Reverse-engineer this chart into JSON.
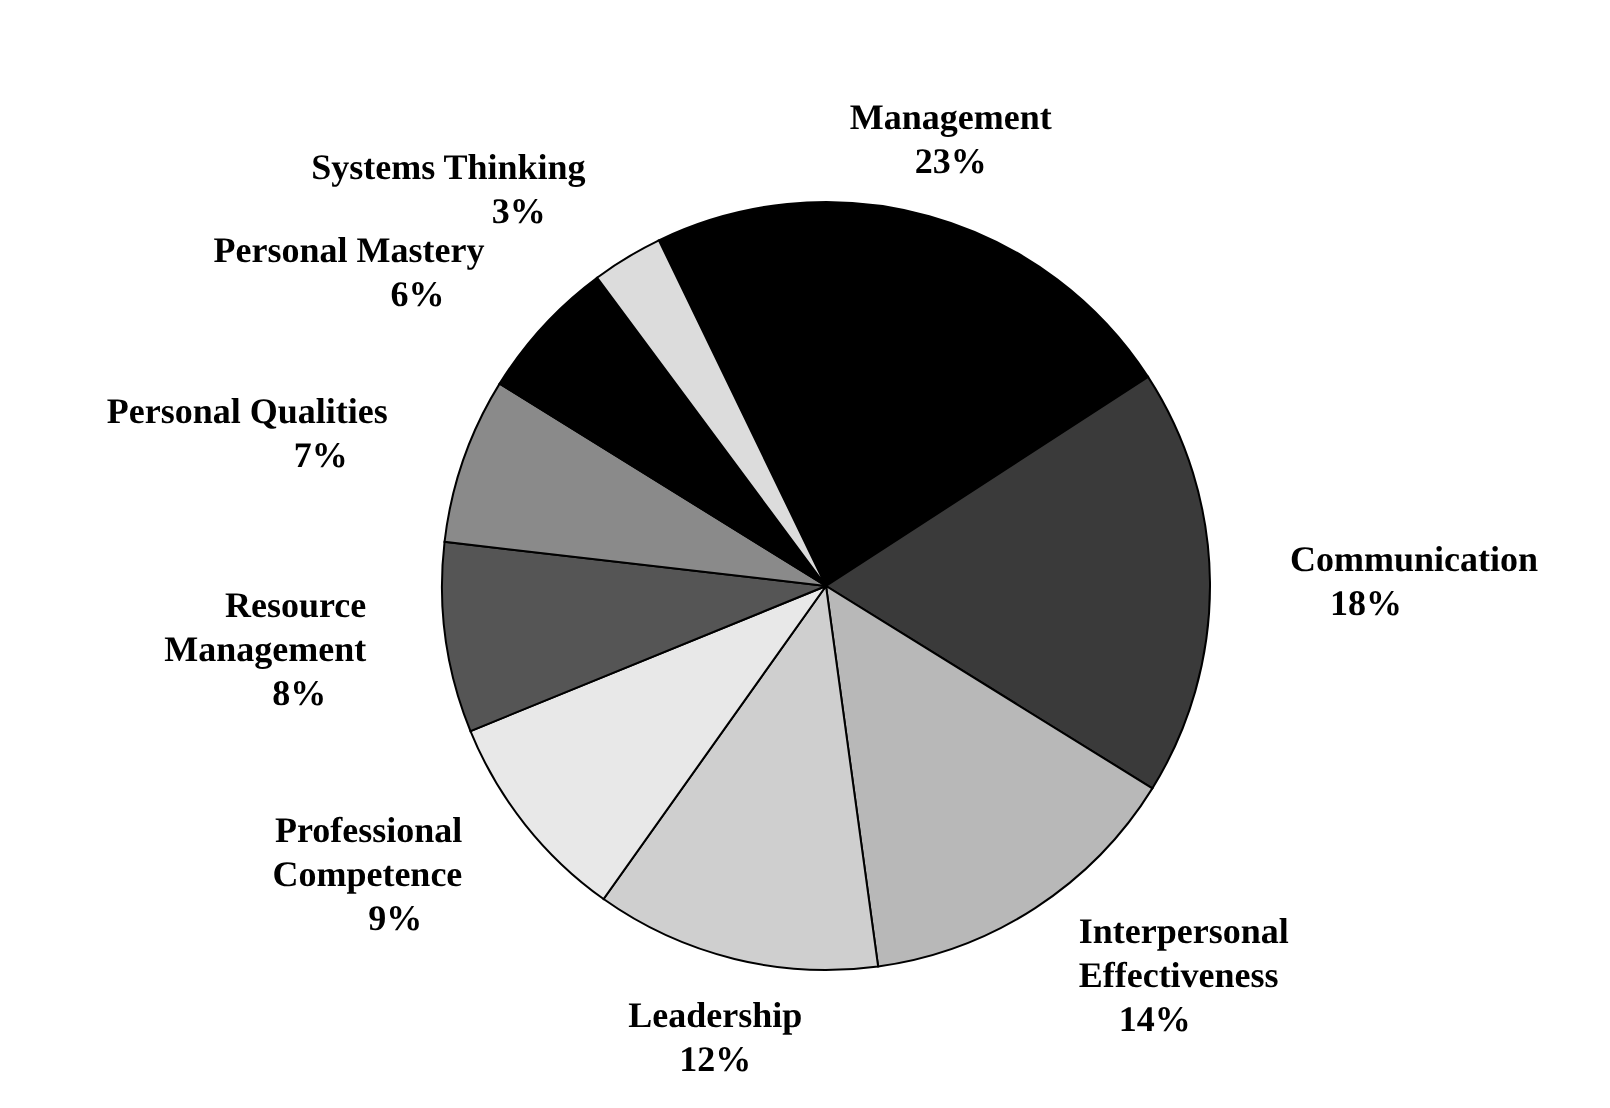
{
  "chart_data": {
    "type": "pie",
    "categories": [
      "Management",
      "Communication",
      "Interpersonal\nEffectiveness",
      "Leadership",
      "Professional\nCompetence",
      "Resource\nManagement",
      "Personal Qualities",
      "Personal Mastery",
      "Systems Thinking"
    ],
    "values": [
      23,
      18,
      14,
      12,
      9,
      8,
      7,
      6,
      3
    ],
    "value_labels": [
      "23%",
      "18%",
      "14%",
      "12%",
      "9%",
      "8%",
      "7%",
      "6%",
      "3%"
    ],
    "colors": [
      "#000000",
      "#3a3a3a",
      "#b8b8b8",
      "#cfcfcf",
      "#e8e8e8",
      "#555555",
      "#8a8a8a",
      "#000000",
      "#dcdcdc"
    ],
    "legend": false
  }
}
